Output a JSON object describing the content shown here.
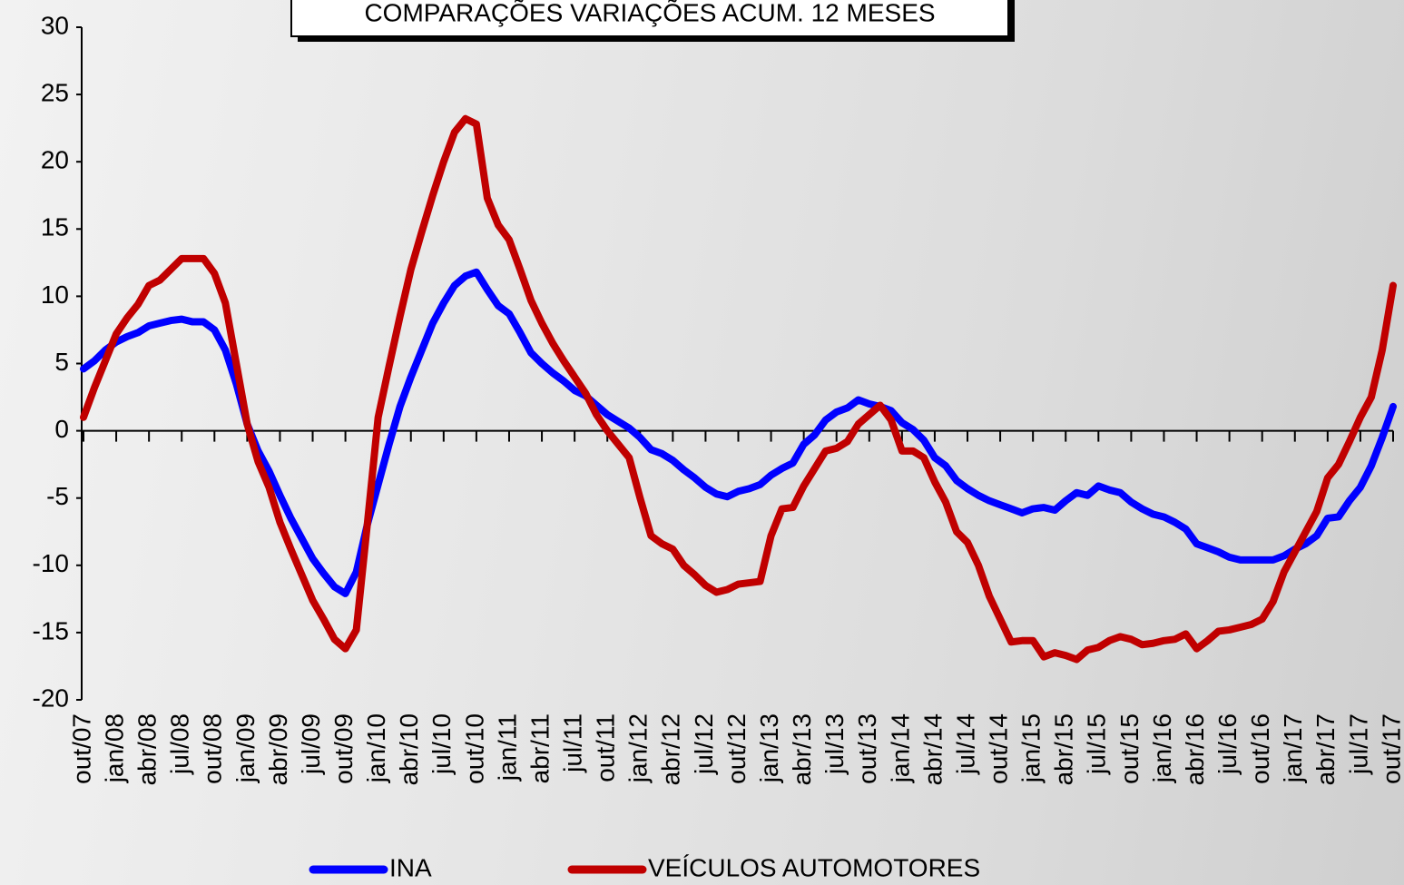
{
  "chart_data": {
    "type": "line",
    "title": "COMPARAÇÕES VARIAÇÕES ACUM. 12 MESES",
    "categories": [
      "out/07",
      null,
      null,
      "jan/08",
      null,
      null,
      "abr/08",
      null,
      null,
      "jul/08",
      null,
      null,
      "out/08",
      null,
      null,
      "jan/09",
      null,
      null,
      "abr/09",
      null,
      null,
      "jul/09",
      null,
      null,
      "out/09",
      null,
      null,
      "jan/10",
      null,
      null,
      "abr/10",
      null,
      null,
      "jul/10",
      null,
      null,
      "out/10",
      null,
      null,
      "jan/11",
      null,
      null,
      "abr/11",
      null,
      null,
      "jul/11",
      null,
      null,
      "out/11",
      null,
      null,
      "jan/12",
      null,
      null,
      "abr/12",
      null,
      null,
      "jul/12",
      null,
      null,
      "out/12",
      null,
      null,
      "jan/13",
      null,
      null,
      "abr/13",
      null,
      null,
      "jul/13",
      null,
      null,
      "out/13",
      null,
      null,
      "jan/14",
      null,
      null,
      "abr/14",
      null,
      null,
      "jul/14",
      null,
      null,
      "out/14",
      null,
      null,
      "jan/15",
      null,
      null,
      "abr/15",
      null,
      null,
      "jul/15",
      null,
      null,
      "out/15",
      null,
      null,
      "jan/16",
      null,
      null,
      "abr/16",
      null,
      null,
      "jul/16",
      null,
      null,
      "out/16",
      null,
      null,
      "jan/17",
      null,
      null,
      "abr/17",
      null,
      null,
      "jul/17",
      null,
      null,
      "out/17"
    ],
    "series": [
      {
        "name": "INA",
        "color": "#0000ff",
        "values": [
          4.6,
          5.2,
          6.0,
          6.6,
          7.0,
          7.3,
          7.8,
          8.0,
          8.2,
          8.3,
          8.1,
          8.1,
          7.5,
          6.0,
          3.5,
          0.5,
          -1.5,
          -3.0,
          -4.8,
          -6.5,
          -8.0,
          -9.5,
          -10.6,
          -11.6,
          -12.1,
          -10.5,
          -7.0,
          -4.0,
          -1.0,
          1.8,
          4.0,
          6.0,
          8.0,
          9.5,
          10.8,
          11.5,
          11.8,
          10.5,
          9.3,
          8.7,
          7.3,
          5.8,
          5.0,
          4.3,
          3.7,
          3.0,
          2.6,
          1.9,
          1.2,
          0.7,
          0.2,
          -0.5,
          -1.4,
          -1.7,
          -2.2,
          -2.9,
          -3.5,
          -4.2,
          -4.7,
          -4.9,
          -4.5,
          -4.3,
          -4.0,
          -3.3,
          -2.8,
          -2.4,
          -1.0,
          -0.3,
          0.8,
          1.4,
          1.7,
          2.3,
          2.0,
          1.8,
          1.5,
          0.6,
          0.1,
          -0.7,
          -2.0,
          -2.6,
          -3.7,
          -4.3,
          -4.8,
          -5.2,
          -5.5,
          -5.8,
          -6.1,
          -5.8,
          -5.7,
          -5.9,
          -5.2,
          -4.6,
          -4.8,
          -4.1,
          -4.4,
          -4.6,
          -5.3,
          -5.8,
          -6.2,
          -6.4,
          -6.8,
          -7.3,
          -8.4,
          -8.7,
          -9.0,
          -9.4,
          -9.6,
          -9.6,
          -9.6,
          -9.6,
          -9.3,
          -8.8,
          -8.4,
          -7.8,
          -6.5,
          -6.4,
          -5.2,
          -4.2,
          -2.6,
          -0.5,
          1.8
        ]
      },
      {
        "name": "VEÍCULOS AUTOMOTORES",
        "color": "#c00000",
        "values": [
          1.0,
          3.2,
          5.2,
          7.2,
          8.4,
          9.4,
          10.8,
          11.2,
          12.0,
          12.8,
          12.8,
          12.8,
          11.7,
          9.5,
          5.0,
          0.5,
          -2.3,
          -4.2,
          -6.8,
          -8.8,
          -10.7,
          -12.6,
          -14.0,
          -15.5,
          -16.2,
          -14.8,
          -7.0,
          1.0,
          4.8,
          8.5,
          12.0,
          14.8,
          17.5,
          20.0,
          22.2,
          23.2,
          22.8,
          17.3,
          15.3,
          14.2,
          12.0,
          9.7,
          8.0,
          6.5,
          5.2,
          4.0,
          2.8,
          1.2,
          0.0,
          -1.0,
          -2.0,
          -5.0,
          -7.8,
          -8.4,
          -8.8,
          -10.0,
          -10.7,
          -11.5,
          -12.0,
          -11.8,
          -11.4,
          -11.3,
          -11.2,
          -7.8,
          -5.8,
          -5.7,
          -4.1,
          -2.8,
          -1.5,
          -1.3,
          -0.8,
          0.5,
          1.2,
          1.9,
          0.8,
          -1.5,
          -1.5,
          -2.0,
          -3.8,
          -5.3,
          -7.5,
          -8.3,
          -10.0,
          -12.3,
          -14.0,
          -15.7,
          -15.6,
          -15.6,
          -16.8,
          -16.5,
          -16.7,
          -17.0,
          -16.3,
          -16.1,
          -15.6,
          -15.3,
          -15.5,
          -15.9,
          -15.8,
          -15.6,
          -15.5,
          -15.1,
          -16.2,
          -15.6,
          -14.9,
          -14.8,
          -14.6,
          -14.4,
          -14.0,
          -12.7,
          -10.5,
          -9.0,
          -7.5,
          -6.0,
          -3.5,
          -2.5,
          -0.8,
          1.0,
          2.5,
          6.0,
          10.8
        ]
      }
    ],
    "ylim": [
      -20,
      30
    ],
    "yticks": [
      -20,
      -15,
      -10,
      -5,
      0,
      5,
      10,
      15,
      20,
      25,
      30
    ]
  }
}
